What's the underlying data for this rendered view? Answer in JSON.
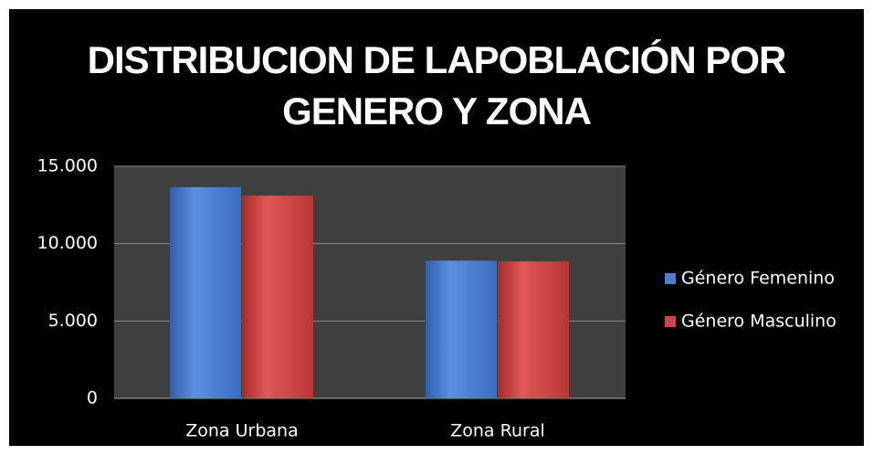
{
  "chart_data": {
    "type": "bar",
    "title": "DISTRIBUCION DE LAPOBLACIÓN POR\nGENERO Y ZONA",
    "categories": [
      "Zona Urbana",
      "Zona Rural"
    ],
    "series": [
      {
        "name": "Género Femenino",
        "color": "#4a7fd4",
        "values": [
          13650,
          8900
        ]
      },
      {
        "name": "Género Masculino",
        "color": "#d44444",
        "values": [
          13100,
          8850
        ]
      }
    ],
    "ylim": [
      0,
      15000
    ],
    "yticks": [
      0,
      {
        "value": 5000,
        "label": "5.000"
      },
      {
        "value": 10000,
        "label": "10.000"
      },
      {
        "value": 15000,
        "label": "15.000"
      }
    ],
    "grid": true,
    "legend": "right"
  }
}
